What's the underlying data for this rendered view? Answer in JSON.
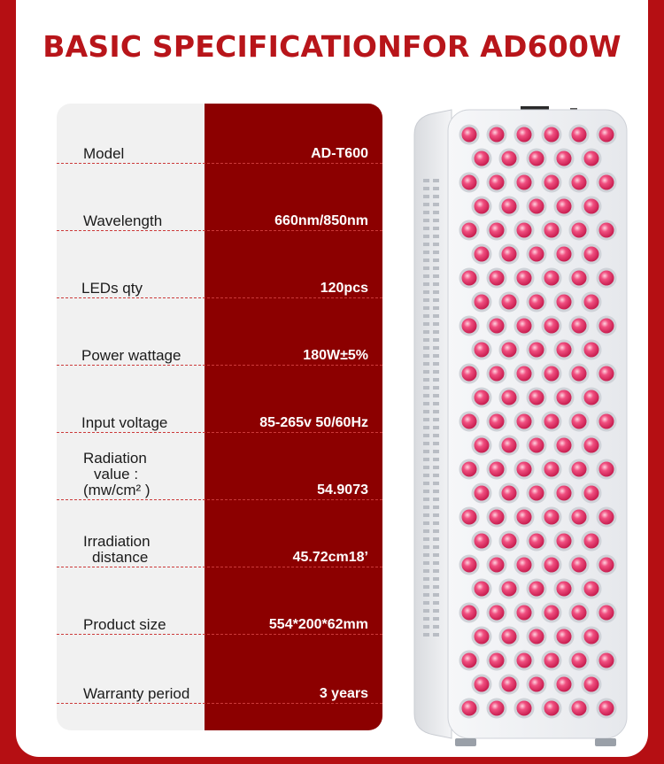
{
  "title": "BASIC SPECIFICATIONFOR AD600W",
  "specs": [
    {
      "label": "Model",
      "value": "AD-T600"
    },
    {
      "label": "Wavelength",
      "value": "660nm/850nm"
    },
    {
      "label": "LEDs qty",
      "value": "120pcs"
    },
    {
      "label": "Power wattage",
      "value": "180W±5%"
    },
    {
      "label": "Input voltage",
      "value": "85-265v 50/60Hz"
    },
    {
      "label": "Radiation",
      "label2": "value :",
      "label3": "(mw/cm² )",
      "value": "54.9073"
    },
    {
      "label": "Irradiation",
      "label2": "distance",
      "value": "45.72cm18’"
    },
    {
      "label": "Product size",
      "value": "554*200*62mm"
    },
    {
      "label": "Warranty period",
      "value": "3 years"
    }
  ],
  "colors": {
    "background": "#b50f13",
    "title": "#b8151a",
    "value_column": "#8c0000",
    "label_column": "#f1f1f1",
    "led": "#e23a6e"
  },
  "product_image": {
    "icon": "red-light-therapy-panel",
    "led_columns": 6
  }
}
